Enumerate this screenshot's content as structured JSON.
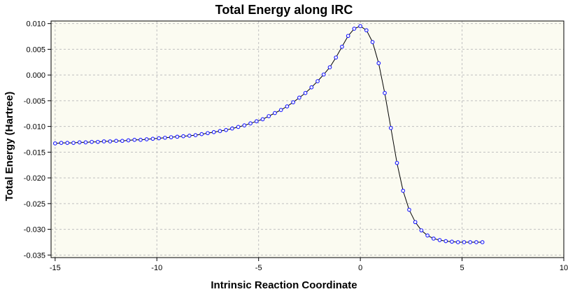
{
  "chart_data": {
    "type": "line",
    "title": "Total Energy along IRC",
    "xlabel": "Intrinsic Reaction Coordinate",
    "ylabel": "Total Energy (Hartree)",
    "xlim": [
      -15.2,
      10
    ],
    "ylim": [
      -0.0355,
      0.0105
    ],
    "x_ticks": [
      -15,
      -10,
      -5,
      0,
      5,
      10
    ],
    "x_tick_labels": [
      "-15",
      "-10",
      "-5",
      "0",
      "5",
      "10"
    ],
    "y_ticks": [
      0.01,
      0.005,
      0.0,
      -0.005,
      -0.01,
      -0.015,
      -0.02,
      -0.025,
      -0.03,
      -0.035
    ],
    "y_tick_labels": [
      "0.010",
      "0.005",
      "0.000",
      "-0.005",
      "-0.010",
      "-0.015",
      "-0.020",
      "-0.025",
      "-0.030",
      "-0.035"
    ],
    "grid": true,
    "legend": "none",
    "colors": {
      "line": "#000000",
      "marker_edge": "#1a1aff",
      "marker_fill": "#ffffff",
      "plot_bg": "#fbfbf1",
      "grid": "#c0c0c0"
    },
    "series": [
      {
        "x": [
          -15.0,
          -14.7,
          -14.4,
          -14.1,
          -13.8,
          -13.5,
          -13.2,
          -12.9,
          -12.6,
          -12.3,
          -12.0,
          -11.7,
          -11.4,
          -11.1,
          -10.8,
          -10.5,
          -10.2,
          -9.9,
          -9.6,
          -9.3,
          -9.0,
          -8.7,
          -8.4,
          -8.1,
          -7.8,
          -7.5,
          -7.2,
          -6.9,
          -6.6,
          -6.3,
          -6.0,
          -5.7,
          -5.4,
          -5.1,
          -4.8,
          -4.5,
          -4.2,
          -3.9,
          -3.6,
          -3.3,
          -3.0,
          -2.7,
          -2.4,
          -2.1,
          -1.8,
          -1.5,
          -1.2,
          -0.9,
          -0.6,
          -0.3,
          0.0,
          0.3,
          0.6,
          0.9,
          1.2,
          1.5,
          1.8,
          2.1,
          2.4,
          2.7,
          3.0,
          3.3,
          3.6,
          3.9,
          4.2,
          4.5,
          4.8,
          5.1,
          5.4,
          5.7,
          6.0
        ],
        "y": [
          -0.0133,
          -0.0132,
          -0.0132,
          -0.0132,
          -0.0131,
          -0.0131,
          -0.013,
          -0.013,
          -0.0129,
          -0.0129,
          -0.0128,
          -0.0128,
          -0.0127,
          -0.0126,
          -0.0126,
          -0.0125,
          -0.0124,
          -0.0123,
          -0.0122,
          -0.0121,
          -0.012,
          -0.0119,
          -0.0118,
          -0.0117,
          -0.0115,
          -0.0113,
          -0.0111,
          -0.0109,
          -0.0107,
          -0.0104,
          -0.0101,
          -0.0098,
          -0.0094,
          -0.009,
          -0.0086,
          -0.008,
          -0.0074,
          -0.0068,
          -0.0061,
          -0.0053,
          -0.0044,
          -0.0035,
          -0.0024,
          -0.0012,
          0.0001,
          0.0015,
          0.0034,
          0.0055,
          0.0076,
          0.009,
          0.0095,
          0.0087,
          0.0064,
          0.0023,
          -0.0035,
          -0.0103,
          -0.0171,
          -0.0225,
          -0.0262,
          -0.0286,
          -0.0302,
          -0.0312,
          -0.0318,
          -0.0321,
          -0.0323,
          -0.0324,
          -0.0325,
          -0.0325,
          -0.0325,
          -0.0325,
          -0.0325
        ]
      }
    ]
  }
}
